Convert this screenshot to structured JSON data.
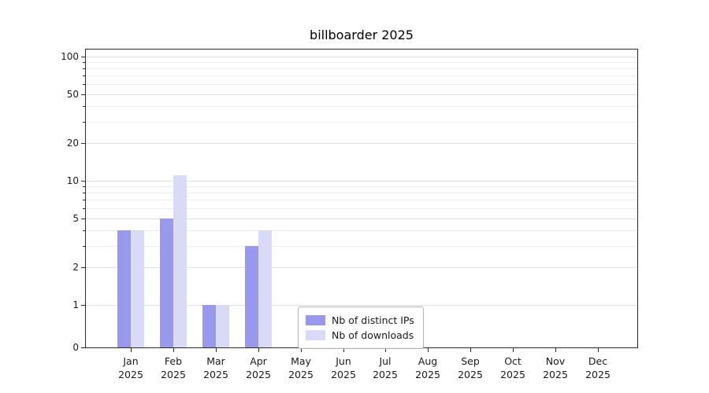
{
  "chart_data": {
    "type": "bar",
    "title": "billboarder 2025",
    "categories": [
      "Jan 2025",
      "Feb 2025",
      "Mar 2025",
      "Apr 2025",
      "May 2025",
      "Jun 2025",
      "Jul 2025",
      "Aug 2025",
      "Sep 2025",
      "Oct 2025",
      "Nov 2025",
      "Dec 2025"
    ],
    "series": [
      {
        "name": "Nb of distinct IPs",
        "color": "#9898ec",
        "values": [
          4,
          5,
          1,
          3,
          0,
          0,
          0,
          0,
          0,
          0,
          0,
          0
        ]
      },
      {
        "name": "Nb of downloads",
        "color": "#d9d9f8",
        "values": [
          4,
          11,
          1,
          4,
          0,
          0,
          0,
          0,
          0,
          0,
          0,
          0
        ]
      }
    ],
    "y_axis": {
      "scale": "symlog",
      "ticks": [
        0,
        1,
        2,
        5,
        10,
        20,
        50,
        100
      ],
      "ylim": [
        0,
        100
      ],
      "grid": "both"
    },
    "x_axis": {
      "label_lines": 2
    },
    "legend": {
      "position": "lower-center-inside"
    }
  }
}
